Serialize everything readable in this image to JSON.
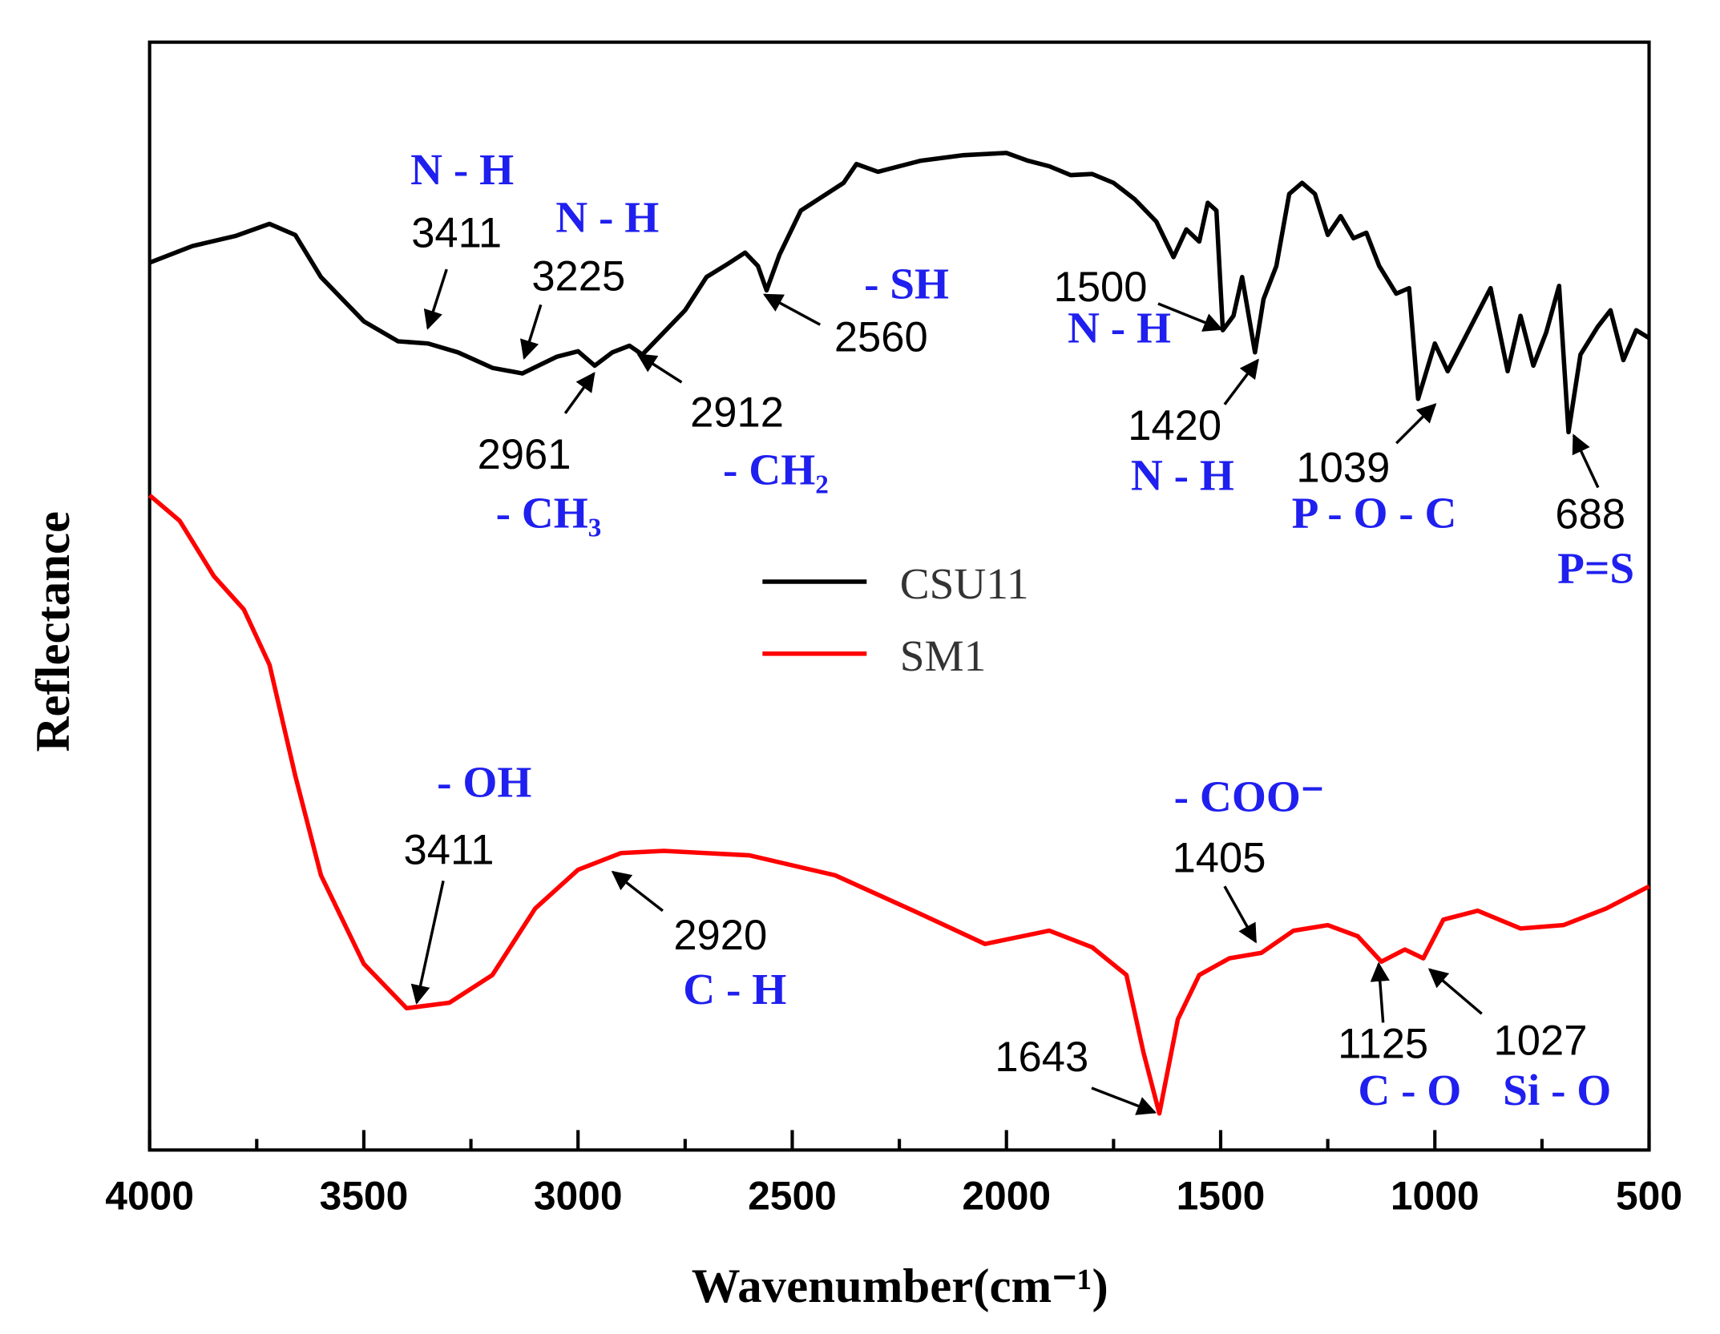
{
  "chart_data": {
    "type": "line",
    "xlabel": "Wavenumber(cm⁻¹)",
    "ylabel": "Reflectance",
    "xlim": [
      4000,
      500
    ],
    "xticks": [
      4000,
      3500,
      3000,
      2500,
      2000,
      1500,
      1000,
      500
    ],
    "ylim": [
      0,
      100
    ],
    "legend": "center",
    "series": [
      {
        "name": "CSU11",
        "color": "#000000",
        "x": [
          4000,
          3900,
          3800,
          3720,
          3660,
          3600,
          3500,
          3420,
          3350,
          3280,
          3200,
          3130,
          3050,
          3000,
          2961,
          2920,
          2880,
          2850,
          2800,
          2750,
          2700,
          2650,
          2610,
          2580,
          2560,
          2530,
          2480,
          2420,
          2380,
          2350,
          2300,
          2200,
          2100,
          2000,
          1950,
          1900,
          1850,
          1800,
          1750,
          1700,
          1650,
          1610,
          1580,
          1550,
          1530,
          1510,
          1495,
          1470,
          1450,
          1420,
          1400,
          1370,
          1340,
          1310,
          1280,
          1250,
          1220,
          1190,
          1160,
          1130,
          1090,
          1060,
          1039,
          1000,
          970,
          930,
          870,
          830,
          800,
          770,
          740,
          710,
          688,
          660,
          620,
          590,
          560,
          530,
          500
        ],
        "values": [
          80.1,
          81.6,
          82.5,
          83.6,
          82.6,
          78.8,
          74.8,
          73.0,
          72.8,
          72.0,
          70.6,
          70.1,
          71.6,
          72.1,
          70.8,
          72.0,
          72.6,
          71.8,
          73.8,
          75.8,
          78.8,
          80.0,
          81.0,
          79.8,
          77.6,
          80.8,
          84.8,
          86.3,
          87.3,
          89.0,
          88.3,
          89.3,
          89.8,
          90.0,
          89.3,
          88.8,
          88.0,
          88.1,
          87.3,
          85.8,
          83.8,
          80.6,
          83.1,
          82.0,
          85.5,
          84.8,
          74.0,
          75.3,
          78.8,
          72.0,
          76.8,
          79.8,
          86.3,
          87.3,
          86.3,
          82.6,
          84.3,
          82.3,
          82.8,
          79.8,
          77.3,
          77.8,
          67.8,
          72.8,
          70.3,
          73.3,
          77.8,
          70.3,
          75.3,
          70.8,
          73.8,
          78.0,
          64.8,
          71.8,
          74.3,
          75.8,
          71.3,
          74.0,
          73.3
        ]
      },
      {
        "name": "SM1",
        "color": "#ff0000",
        "x": [
          4000,
          3930,
          3850,
          3780,
          3720,
          3660,
          3600,
          3500,
          3400,
          3300,
          3200,
          3100,
          3000,
          2900,
          2800,
          2600,
          2400,
          2200,
          2050,
          1900,
          1800,
          1720,
          1680,
          1643,
          1600,
          1550,
          1480,
          1405,
          1330,
          1250,
          1180,
          1125,
          1070,
          1027,
          980,
          900,
          800,
          700,
          600,
          500
        ],
        "values": [
          59.1,
          56.8,
          51.8,
          48.8,
          43.8,
          33.8,
          24.8,
          16.8,
          12.8,
          13.3,
          15.8,
          21.8,
          25.3,
          26.8,
          27.0,
          26.6,
          24.8,
          21.3,
          18.6,
          19.8,
          18.3,
          15.8,
          8.8,
          3.3,
          11.8,
          15.8,
          17.3,
          17.8,
          19.8,
          20.3,
          19.3,
          17.0,
          18.1,
          17.3,
          20.8,
          21.6,
          20.0,
          20.3,
          21.8,
          23.8
        ]
      }
    ],
    "peaks": [
      3411,
      3225,
      2961,
      2912,
      2560,
      1500,
      1420,
      1039,
      688,
      3411,
      2920,
      1643,
      1405,
      1125,
      1027
    ],
    "groups": [
      "N - H",
      "N - H",
      "- CH₃",
      "- CH₂",
      "- SH",
      "N - H",
      "N - H",
      "P - O - C",
      "P=S",
      "- OH",
      "C - H",
      "- COO⁻",
      "C - O",
      "Si - O"
    ]
  }
}
